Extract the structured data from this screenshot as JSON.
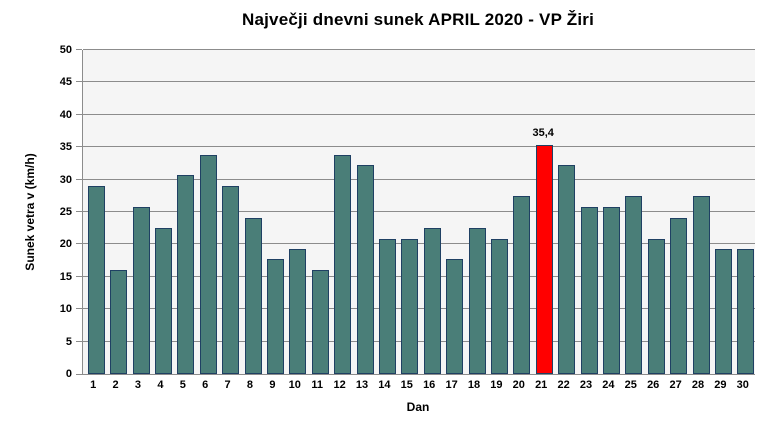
{
  "chart_data": {
    "type": "bar",
    "title": "Največji dnevni sunek APRIL 2020 - VP Žiri",
    "xlabel": "Dan",
    "ylabel": "Sunek vetra v (km/h)",
    "categories": [
      1,
      2,
      3,
      4,
      5,
      6,
      7,
      8,
      9,
      10,
      11,
      12,
      13,
      14,
      15,
      16,
      17,
      18,
      19,
      20,
      21,
      22,
      23,
      24,
      25,
      26,
      27,
      28,
      29,
      30
    ],
    "values": [
      29.0,
      16.1,
      25.7,
      22.6,
      30.7,
      33.8,
      29.0,
      24.1,
      17.8,
      19.3,
      16.1,
      33.8,
      32.2,
      20.9,
      20.9,
      22.5,
      17.8,
      22.6,
      20.9,
      27.4,
      35.4,
      32.2,
      25.7,
      25.7,
      27.4,
      20.9,
      24.1,
      27.4,
      19.3,
      19.3
    ],
    "ylim": [
      0,
      50
    ],
    "ytick_step": 5,
    "grid": true,
    "legend": "none",
    "highlight": {
      "index": 20,
      "color": "#FF0000",
      "label": "35,4"
    },
    "colors": {
      "bar_fill": "#4A7E78",
      "bar_border": "#1F4063",
      "gridline": "#8C8C8C",
      "plot_background": "#F5F5F5",
      "page_background": "#FFFFFF",
      "text": "#000000"
    }
  }
}
